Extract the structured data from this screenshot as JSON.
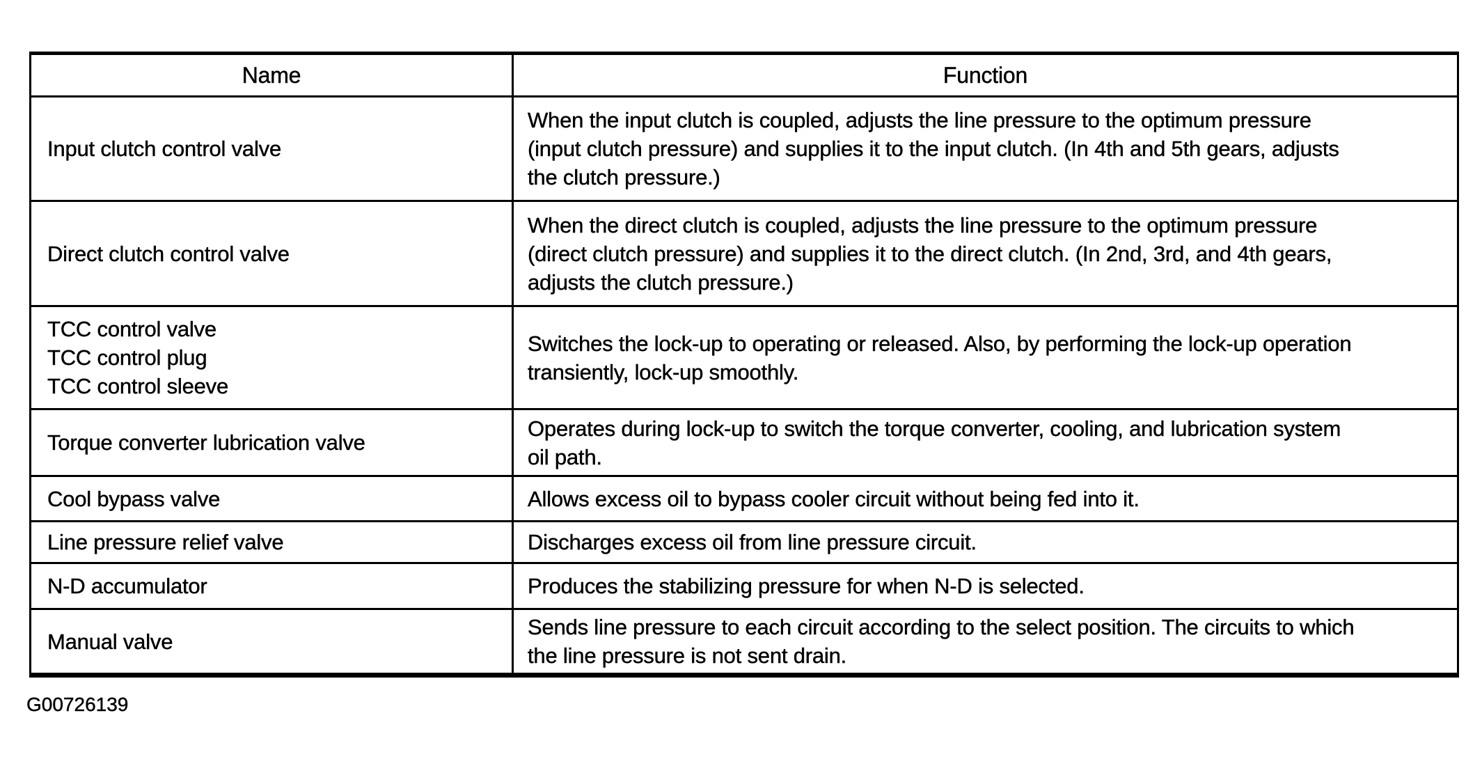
{
  "page": {
    "paper_color": "#ffffff",
    "ink_color": "#000000"
  },
  "table": {
    "headers": {
      "name": "Name",
      "function": "Function"
    },
    "rows": [
      {
        "name": "Input clutch control valve",
        "function": "When the input clutch is coupled, adjusts the line pressure to the optimum pressure\n(input clutch pressure) and supplies it to the input clutch. (In 4th and 5th gears, adjusts\nthe clutch pressure.)"
      },
      {
        "name": "Direct clutch control valve",
        "function": "When the direct clutch is coupled, adjusts the line pressure to the optimum pressure\n(direct clutch pressure) and supplies it to the direct clutch. (In 2nd, 3rd, and 4th gears,\nadjusts the clutch pressure.)"
      },
      {
        "name": "TCC control valve\nTCC control plug\nTCC control sleeve",
        "function": "Switches the lock-up to operating or released. Also, by performing the lock-up operation\ntransiently, lock-up smoothly."
      },
      {
        "name": "Torque converter lubrication valve",
        "function": "Operates during lock-up to switch the torque converter, cooling, and lubrication system\noil path."
      },
      {
        "name": "Cool bypass valve",
        "function": "Allows excess oil to bypass cooler circuit without being fed into it."
      },
      {
        "name": "Line pressure relief valve",
        "function": "Discharges excess oil from line pressure circuit."
      },
      {
        "name": "N-D accumulator",
        "function": "Produces the stabilizing pressure for when N-D is selected."
      },
      {
        "name": "Manual valve",
        "function": "Sends line pressure to each circuit according to the select position. The circuits to which\nthe line pressure is not sent drain."
      }
    ]
  },
  "footer": {
    "figure_id": "G00726139"
  }
}
